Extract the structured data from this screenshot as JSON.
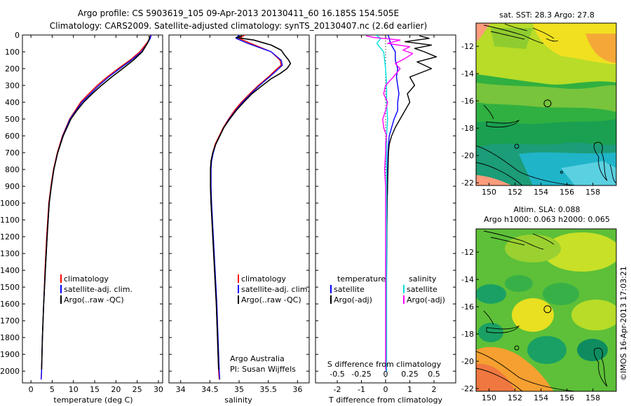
{
  "header": {
    "line1": "Argo profile: CS 5903619_105 09-Apr-2013 20130411_60 16.185S 154.505E",
    "line2": "Climatology: CARS2009. Satellite-adjusted climatology: synTS_20130407.nc (2.6d earlier)"
  },
  "colors": {
    "climatology": "#ff0000",
    "satellite": "#0000ff",
    "argo": "#000000",
    "sal_satellite": "#00e0e0",
    "sal_argo": "#ff00ff"
  },
  "chart_data": [
    {
      "type": "line",
      "id": "temperature",
      "xlabel": "temperature (deg C)",
      "xlim": [
        -2,
        31
      ],
      "xticks": [
        0,
        5,
        10,
        15,
        20,
        25,
        30
      ],
      "ylim": [
        0,
        2070
      ],
      "yticks": [
        0,
        100,
        200,
        300,
        400,
        500,
        600,
        700,
        800,
        900,
        1000,
        1100,
        1200,
        1300,
        1400,
        1500,
        1600,
        1700,
        1800,
        1900,
        2000
      ],
      "legend": [
        "climatology",
        "satellite-adj. clim.",
        "Argo(..raw -QC)"
      ],
      "series": [
        {
          "name": "climatology",
          "color": "#ff0000",
          "depth": [
            0,
            20,
            50,
            100,
            150,
            200,
            250,
            300,
            350,
            400,
            450,
            500,
            600,
            700,
            800,
            900,
            1000,
            1200,
            1400,
            1600,
            1800,
            2000,
            2050
          ],
          "values": [
            28.2,
            28.0,
            27.2,
            25.6,
            23.3,
            20.5,
            17.9,
            15.6,
            13.6,
            11.7,
            10.4,
            9.1,
            7.4,
            6.2,
            5.3,
            4.7,
            4.2,
            3.7,
            3.3,
            3.0,
            2.7,
            2.5,
            2.4
          ]
        },
        {
          "name": "satellite-adj. clim.",
          "color": "#0000ff",
          "depth": [
            0,
            20,
            50,
            100,
            150,
            200,
            250,
            300,
            350,
            400,
            450,
            500,
            600,
            700,
            800,
            900,
            1000,
            1200,
            1400,
            1600,
            1800,
            2000,
            2050
          ],
          "values": [
            28.3,
            28.1,
            27.4,
            26.0,
            23.6,
            20.9,
            18.3,
            16.0,
            14.0,
            12.0,
            10.6,
            9.2,
            7.5,
            6.3,
            5.4,
            4.8,
            4.3,
            3.8,
            3.4,
            3.0,
            2.7,
            2.5,
            2.4
          ]
        },
        {
          "name": "Argo(..raw -QC)",
          "color": "#000000",
          "depth": [
            5,
            20,
            50,
            100,
            150,
            200,
            250,
            300,
            350,
            400,
            450,
            500,
            600,
            700,
            800,
            900,
            1000,
            1200,
            1400,
            1600,
            1800,
            1990
          ],
          "values": [
            27.8,
            27.9,
            27.4,
            26.2,
            24.1,
            21.6,
            19.0,
            16.6,
            14.4,
            12.4,
            10.8,
            9.4,
            7.6,
            6.3,
            5.4,
            4.8,
            4.3,
            3.8,
            3.4,
            3.0,
            2.7,
            2.5
          ]
        }
      ]
    },
    {
      "type": "line",
      "id": "salinity",
      "xlabel": "salinity",
      "xlim": [
        33.8,
        36.2
      ],
      "xticks": [
        34,
        34.5,
        35,
        35.5,
        36
      ],
      "ylim": [
        0,
        2070
      ],
      "legend": [
        "climatology",
        "satellite-adj. clim.",
        "Argo(..raw -QC)"
      ],
      "annotation": [
        "Argo Australia",
        "PI: Susan Wijffels"
      ],
      "series": [
        {
          "name": "climatology",
          "color": "#ff0000",
          "depth": [
            0,
            20,
            50,
            100,
            150,
            180,
            200,
            250,
            300,
            350,
            400,
            450,
            500,
            550,
            600,
            650,
            700,
            750,
            800,
            900,
            1000,
            1200,
            1400,
            1600,
            1800,
            2000,
            2050
          ],
          "values": [
            35.1,
            35.0,
            35.2,
            35.55,
            35.7,
            35.72,
            35.65,
            35.5,
            35.33,
            35.18,
            35.04,
            34.92,
            34.82,
            34.73,
            34.66,
            34.59,
            34.55,
            34.52,
            34.51,
            34.51,
            34.52,
            34.55,
            34.58,
            34.61,
            34.63,
            34.65,
            34.66
          ]
        },
        {
          "name": "satellite-adj. clim.",
          "color": "#0000ff",
          "depth": [
            0,
            20,
            50,
            100,
            150,
            180,
            200,
            250,
            300,
            350,
            400,
            450,
            500,
            550,
            600,
            650,
            700,
            750,
            800,
            900,
            1000,
            1200,
            1400,
            1600,
            1800,
            2000,
            2050
          ],
          "values": [
            35.0,
            34.95,
            35.15,
            35.55,
            35.72,
            35.74,
            35.68,
            35.52,
            35.35,
            35.2,
            35.06,
            34.94,
            34.83,
            34.74,
            34.67,
            34.6,
            34.56,
            34.53,
            34.52,
            34.52,
            34.53,
            34.56,
            34.59,
            34.62,
            34.64,
            34.66,
            34.67
          ]
        },
        {
          "name": "Argo(..raw -QC)",
          "color": "#000000",
          "depth": [
            5,
            15,
            30,
            60,
            90,
            120,
            150,
            170,
            200,
            230,
            260,
            300,
            350,
            400,
            450,
            500,
            550,
            600,
            650,
            700,
            750,
            800,
            900,
            1000,
            1200,
            1400,
            1600,
            1800,
            1990
          ],
          "values": [
            35.05,
            34.95,
            35.25,
            35.55,
            35.72,
            35.78,
            35.85,
            35.88,
            35.82,
            35.7,
            35.55,
            35.4,
            35.22,
            35.08,
            34.95,
            34.84,
            34.74,
            34.67,
            34.6,
            34.55,
            34.52,
            34.51,
            34.51,
            34.52,
            34.55,
            34.58,
            34.61,
            34.63,
            34.65
          ]
        }
      ]
    },
    {
      "type": "line",
      "id": "difference",
      "xlabel": "T difference from climatology",
      "xlabel2": "S difference from climatology",
      "xlim": [
        -2.9,
        2.9
      ],
      "xticks": [
        -2,
        -1,
        0,
        1,
        2
      ],
      "xticks2": [
        -0.5,
        -0.25,
        0,
        0.25,
        0.5
      ],
      "ylim": [
        0,
        2070
      ],
      "legend_titles": [
        "temperature",
        "salinity"
      ],
      "legend": [
        "satellite",
        "Argo(-adj)",
        "satellite",
        "Argo(-adj)"
      ],
      "series": [
        {
          "name": "T satellite",
          "color": "#0000ff",
          "depth": [
            0,
            20,
            50,
            100,
            150,
            200,
            250,
            300,
            350,
            400,
            450,
            500,
            550,
            600,
            650,
            700,
            800,
            900,
            1000,
            1200,
            1400,
            1600,
            1800,
            2000
          ],
          "values": [
            0.1,
            0.15,
            0.2,
            0.4,
            0.4,
            0.5,
            0.45,
            0.5,
            0.55,
            0.5,
            0.5,
            0.35,
            0.25,
            0.15,
            0.12,
            0.1,
            0.08,
            0.08,
            0.06,
            0.05,
            0.04,
            0.03,
            0.02,
            0.02
          ]
        },
        {
          "name": "T Argo(-adj)",
          "color": "#000000",
          "depth": [
            5,
            20,
            40,
            60,
            80,
            100,
            130,
            160,
            200,
            250,
            300,
            350,
            400,
            450,
            500,
            550,
            600,
            650,
            700,
            800,
            900,
            1000,
            1200,
            1400,
            1600,
            1800,
            1990
          ],
          "values": [
            1.4,
            1.8,
            0.8,
            1.9,
            1.2,
            1.6,
            2.1,
            1.3,
            1.9,
            1.0,
            1.2,
            0.9,
            1.0,
            0.8,
            0.6,
            0.4,
            0.25,
            0.15,
            0.12,
            0.1,
            0.08,
            0.06,
            0.05,
            0.04,
            0.03,
            0.02,
            0.02
          ]
        },
        {
          "name": "S satellite",
          "color": "#00e0e0",
          "depth": [
            0,
            20,
            50,
            80,
            100,
            150,
            200,
            300,
            400,
            500,
            600,
            700,
            800,
            900,
            1000,
            1200,
            1400,
            1600,
            1800,
            2000
          ],
          "values": [
            -0.1,
            -0.05,
            -0.09,
            -0.05,
            -0.02,
            -0.01,
            0.0,
            0.01,
            0.01,
            0.02,
            0.01,
            0.01,
            0.01,
            0.01,
            0.01,
            0.01,
            0.01,
            0.01,
            0.01,
            0.01
          ]
        },
        {
          "name": "S Argo(-adj)",
          "color": "#ff00ff",
          "depth": [
            5,
            15,
            30,
            50,
            70,
            90,
            110,
            140,
            170,
            200,
            250,
            300,
            350,
            400,
            450,
            500,
            550,
            600,
            650,
            700,
            800,
            900,
            1000,
            1200,
            1400,
            1600,
            1800,
            1990
          ],
          "values": [
            -0.2,
            -0.12,
            0.15,
            0.02,
            0.25,
            0.18,
            0.28,
            0.2,
            0.1,
            0.15,
            0.08,
            0.0,
            -0.02,
            0.02,
            0.0,
            -0.03,
            -0.02,
            0.01,
            0.0,
            0.0,
            -0.01,
            0.0,
            0.0,
            0.0,
            0.0,
            0.0,
            0.0,
            0.0
          ]
        }
      ]
    },
    {
      "type": "heatmap",
      "id": "sst-map",
      "title": "sat. SST: 28.3 Argo: 27.8",
      "xlim": [
        149,
        159.8
      ],
      "ylim": [
        -22.2,
        -10.3
      ],
      "xticks": [
        150,
        152,
        154,
        156,
        158
      ],
      "yticks": [
        -12,
        -14,
        -16,
        -18,
        -20,
        -22
      ],
      "argo_position": {
        "lon": 154.505,
        "lat": -16.185
      }
    },
    {
      "type": "heatmap",
      "id": "sla-map",
      "title": "Altim. SLA: 0.088",
      "subtitle": "Argo h1000: 0.063 h2000: 0.065",
      "xlim": [
        149,
        159.8
      ],
      "ylim": [
        -22.2,
        -10.3
      ],
      "xticks": [
        150,
        152,
        154,
        156,
        158
      ],
      "yticks": [
        -12,
        -14,
        -16,
        -18,
        -20,
        -22
      ],
      "argo_position": {
        "lon": 154.505,
        "lat": -16.185
      }
    }
  ],
  "stamp": "©IMOS 16-Apr-2013 17:03:21"
}
